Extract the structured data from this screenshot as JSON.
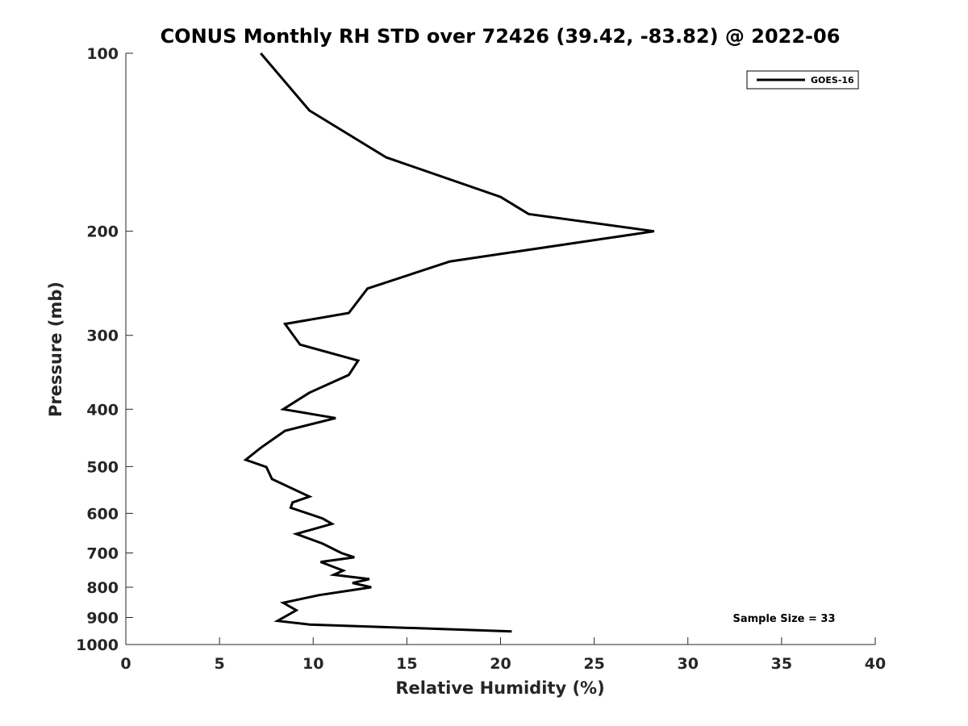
{
  "chart_data": {
    "type": "line",
    "title": "CONUS Monthly RH STD over 72426 (39.42, -83.82) @ 2022-06",
    "xlabel": "Relative Humidity (%)",
    "ylabel": "Pressure (mb)",
    "xlim": [
      0,
      40
    ],
    "ylim": [
      100,
      1000
    ],
    "y_scale": "log",
    "y_reversed": true,
    "x_ticks": [
      "0",
      "5",
      "10",
      "15",
      "20",
      "25",
      "30",
      "35",
      "40"
    ],
    "y_ticks": [
      "100",
      "200",
      "300",
      "400",
      "500",
      "600",
      "700",
      "800",
      "900",
      "1000"
    ],
    "grid": false,
    "legend_placement": "top-right",
    "annotation": "Sample Size = 33",
    "series": [
      {
        "name": "GOES-16",
        "color": "#000000",
        "points": [
          [
            7.2,
            100
          ],
          [
            9.8,
            125
          ],
          [
            13.9,
            150
          ],
          [
            20.0,
            175
          ],
          [
            21.5,
            187
          ],
          [
            28.2,
            200
          ],
          [
            17.3,
            225
          ],
          [
            12.9,
            250
          ],
          [
            11.9,
            275
          ],
          [
            8.5,
            287
          ],
          [
            9.3,
            311
          ],
          [
            12.4,
            331
          ],
          [
            11.9,
            350
          ],
          [
            9.8,
            375
          ],
          [
            8.4,
            400
          ],
          [
            11.2,
            414
          ],
          [
            8.5,
            435
          ],
          [
            7.2,
            465
          ],
          [
            6.4,
            487
          ],
          [
            7.5,
            501
          ],
          [
            7.8,
            525
          ],
          [
            9.8,
            562
          ],
          [
            8.9,
            575
          ],
          [
            8.8,
            587
          ],
          [
            10.5,
            612
          ],
          [
            11.0,
            625
          ],
          [
            9.1,
            650
          ],
          [
            10.5,
            675
          ],
          [
            11.5,
            700
          ],
          [
            12.2,
            712
          ],
          [
            10.4,
            725
          ],
          [
            11.6,
            750
          ],
          [
            11.1,
            762
          ],
          [
            13.0,
            775
          ],
          [
            12.1,
            787
          ],
          [
            13.1,
            800
          ],
          [
            10.3,
            825
          ],
          [
            8.4,
            850
          ],
          [
            9.1,
            875
          ],
          [
            8.1,
            912
          ],
          [
            9.8,
            925
          ],
          [
            20.6,
            950
          ]
        ]
      }
    ]
  }
}
